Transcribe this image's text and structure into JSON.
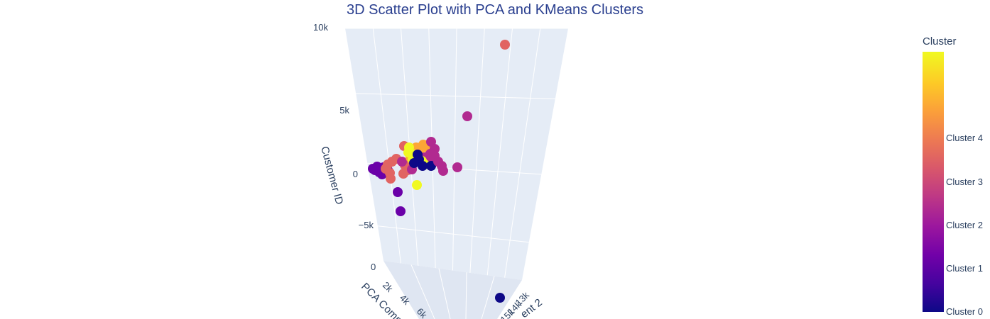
{
  "chart_data": {
    "type": "scatter",
    "title": "3D Scatter Plot with PCA and KMeans Clusters",
    "axes": {
      "z": {
        "label": "Customer ID",
        "ticks": [
          "−5k",
          "0",
          "5k",
          "10k"
        ]
      },
      "x": {
        "label": "PCA Comp",
        "ticks": [
          "0",
          "2k",
          "4k",
          "6k"
        ]
      },
      "y": {
        "label": "ent 2",
        "ticks": [
          "13k",
          "14k",
          "15k"
        ]
      }
    },
    "colorbar": {
      "title": "Cluster",
      "labels": [
        "Cluster 4",
        "Cluster 3",
        "Cluster 2",
        "Cluster 1",
        "Cluster 0"
      ],
      "colorscale": [
        "#0d0887",
        "#46039f",
        "#7201a8",
        "#9c179e",
        "#bd3786",
        "#d8576b",
        "#ed7953",
        "#fb9f3a",
        "#fdca26",
        "#f0f921"
      ]
    },
    "cluster_colors": [
      "#0d0887",
      "#6a00a8",
      "#b12a90",
      "#e16462",
      "#fca636",
      "#f0f921"
    ]
  }
}
